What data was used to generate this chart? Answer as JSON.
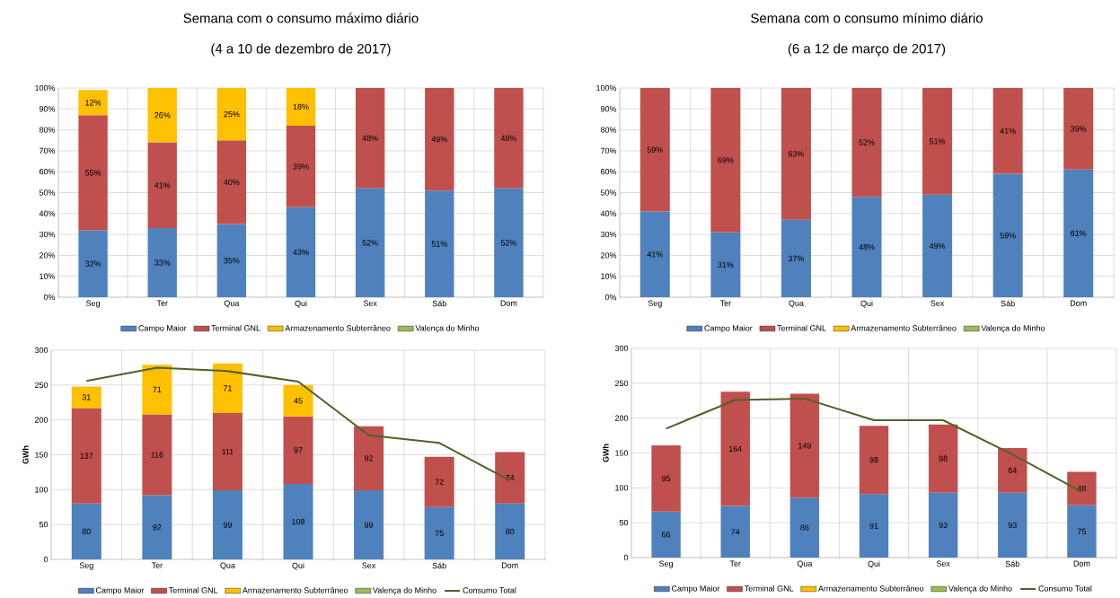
{
  "chart_data": [
    {
      "type": "bar",
      "title": "Semana com o consumo máximo diário",
      "subtitle": "(4 a 10 de dezembro de 2017)",
      "stacked": true,
      "grid": true,
      "legend": "bottom",
      "categories": [
        "Seg",
        "Ter",
        "Qua",
        "Qui",
        "Sex",
        "Sáb",
        "Dom"
      ],
      "ylim": [
        0,
        100
      ],
      "yticks": [
        {
          "value": 0,
          "label": "0%"
        },
        {
          "value": 10,
          "label": "10%"
        },
        {
          "value": 20,
          "label": "20%"
        },
        {
          "value": 30,
          "label": "30%"
        },
        {
          "value": 40,
          "label": "40%"
        },
        {
          "value": 50,
          "label": "50%"
        },
        {
          "value": 60,
          "label": "60%"
        },
        {
          "value": 70,
          "label": "70%"
        },
        {
          "value": 80,
          "label": "80%"
        },
        {
          "value": 90,
          "label": "90%"
        },
        {
          "value": 100,
          "label": "100%"
        }
      ],
      "series": [
        {
          "name": "Campo Maior",
          "color": "#4f81bd",
          "values": [
            32,
            33,
            35,
            43,
            52,
            51,
            52
          ],
          "value_labels": [
            "32%",
            "33%",
            "35%",
            "43%",
            "52%",
            "51%",
            "52%"
          ]
        },
        {
          "name": "Terminal GNL",
          "color": "#c0504d",
          "values": [
            55,
            41,
            40,
            39,
            48,
            49,
            48
          ],
          "value_labels": [
            "55%",
            "41%",
            "40%",
            "39%",
            "48%",
            "49%",
            "48%"
          ]
        },
        {
          "name": "Armazenamento Subterrâneo",
          "color": "#ffc000",
          "values": [
            12,
            26,
            25,
            18,
            null,
            null,
            null
          ],
          "value_labels": [
            "12%",
            "26%",
            "25%",
            "18%",
            null,
            null,
            null
          ]
        },
        {
          "name": "Valença do Minho",
          "color": "#9bbb59",
          "values": [
            null,
            null,
            null,
            null,
            null,
            null,
            null
          ]
        }
      ]
    },
    {
      "type": "bar",
      "title": "Semana com o consumo mínimo diário",
      "subtitle": "(6 a 12 de março de 2017)",
      "stacked": true,
      "grid": true,
      "legend": "bottom",
      "categories": [
        "Seg",
        "Ter",
        "Qua",
        "Qui",
        "Sex",
        "Sáb",
        "Dom"
      ],
      "ylim": [
        0,
        100
      ],
      "yticks": [
        {
          "value": 0,
          "label": "0%"
        },
        {
          "value": 10,
          "label": "10%"
        },
        {
          "value": 20,
          "label": "20%"
        },
        {
          "value": 30,
          "label": "30%"
        },
        {
          "value": 40,
          "label": "40%"
        },
        {
          "value": 50,
          "label": "50%"
        },
        {
          "value": 60,
          "label": "60%"
        },
        {
          "value": 70,
          "label": "70%"
        },
        {
          "value": 80,
          "label": "80%"
        },
        {
          "value": 90,
          "label": "90%"
        },
        {
          "value": 100,
          "label": "100%"
        }
      ],
      "series": [
        {
          "name": "Campo Maior",
          "color": "#4f81bd",
          "values": [
            41,
            31,
            37,
            48,
            49,
            59,
            61
          ],
          "value_labels": [
            "41%",
            "31%",
            "37%",
            "48%",
            "49%",
            "59%",
            "61%"
          ]
        },
        {
          "name": "Terminal GNL",
          "color": "#c0504d",
          "values": [
            59,
            69,
            63,
            52,
            51,
            41,
            39
          ],
          "value_labels": [
            "59%",
            "69%",
            "63%",
            "52%",
            "51%",
            "41%",
            "39%"
          ]
        },
        {
          "name": "Armazenamento Subterrâneo",
          "color": "#ffc000",
          "values": [
            null,
            null,
            null,
            null,
            null,
            null,
            null
          ]
        },
        {
          "name": "Valença do Minho",
          "color": "#9bbb59",
          "values": [
            null,
            null,
            null,
            null,
            null,
            null,
            null
          ]
        }
      ]
    },
    {
      "type": "bar",
      "ylabel": "GWh",
      "stacked": true,
      "grid": true,
      "legend": "bottom",
      "categories": [
        "Seg",
        "Ter",
        "Qua",
        "Qui",
        "Sex",
        "Sáb",
        "Dom"
      ],
      "ylim": [
        0,
        300
      ],
      "yticks": [
        0,
        50,
        100,
        150,
        200,
        250,
        300
      ],
      "series": [
        {
          "name": "Campo Maior",
          "color": "#4f81bd",
          "values": [
            80,
            92,
            99,
            108,
            99,
            75,
            80
          ],
          "value_labels": [
            "80",
            "92",
            "99",
            "108",
            "99",
            "75",
            "80"
          ]
        },
        {
          "name": "Terminal GNL",
          "color": "#c0504d",
          "values": [
            137,
            116,
            111,
            97,
            92,
            72,
            74
          ],
          "value_labels": [
            "137",
            "116",
            "111",
            "97",
            "92",
            "72",
            "74"
          ]
        },
        {
          "name": "Armazenamento Subterrâneo",
          "color": "#ffc000",
          "values": [
            31,
            71,
            71,
            45,
            null,
            null,
            null
          ],
          "value_labels": [
            "31",
            "71",
            "71",
            "45",
            null,
            null,
            null
          ]
        },
        {
          "name": "Valença do Minho",
          "color": "#9bbb59",
          "values": [
            null,
            null,
            null,
            null,
            null,
            null,
            null
          ]
        },
        {
          "name": "Consumo Total",
          "type": "line",
          "color": "#4f6228",
          "values": [
            256,
            275,
            270,
            255,
            178,
            167,
            113
          ]
        }
      ]
    },
    {
      "type": "bar",
      "ylabel": "GWh",
      "stacked": true,
      "grid": true,
      "legend": "bottom",
      "categories": [
        "Seg",
        "Ter",
        "Qua",
        "Qui",
        "Sex",
        "Sáb",
        "Dom"
      ],
      "ylim": [
        0,
        300
      ],
      "yticks": [
        0,
        50,
        100,
        150,
        200,
        250,
        300
      ],
      "series": [
        {
          "name": "Campo Maior",
          "color": "#4f81bd",
          "values": [
            66,
            74,
            86,
            91,
            93,
            93,
            75
          ],
          "value_labels": [
            "66",
            "74",
            "86",
            "91",
            "93",
            "93",
            "75"
          ]
        },
        {
          "name": "Terminal GNL",
          "color": "#c0504d",
          "values": [
            95,
            164,
            149,
            98,
            98,
            64,
            48
          ],
          "value_labels": [
            "95",
            "164",
            "149",
            "98",
            "98",
            "64",
            "48"
          ]
        },
        {
          "name": "Armazenamento Subterrâneo",
          "color": "#ffc000",
          "values": [
            null,
            null,
            null,
            null,
            null,
            null,
            null
          ]
        },
        {
          "name": "Valença do Minho",
          "color": "#9bbb59",
          "values": [
            null,
            null,
            null,
            null,
            null,
            null,
            null
          ]
        },
        {
          "name": "Consumo Total",
          "type": "line",
          "color": "#4f6228",
          "values": [
            185,
            226,
            228,
            197,
            197,
            148,
            94
          ]
        }
      ]
    }
  ]
}
